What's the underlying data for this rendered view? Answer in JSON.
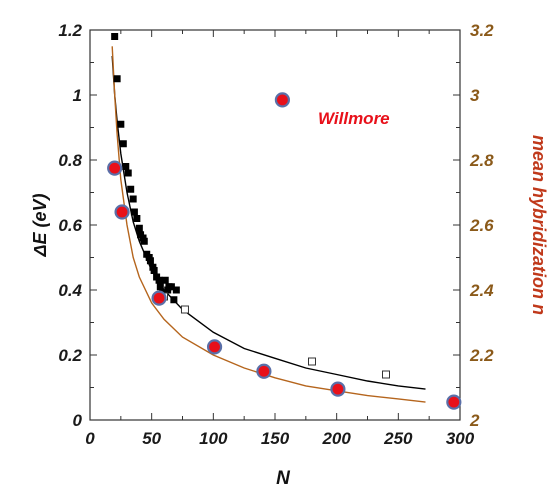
{
  "chart_data": {
    "type": "scatter",
    "xlabel": "N",
    "ylabel": "ΔE (eV)",
    "y2label": "mean hybridization  n",
    "xlim": [
      0,
      300
    ],
    "ylim": [
      0,
      1.2
    ],
    "y2lim": [
      2.0,
      3.2
    ],
    "xticks": [
      "0",
      "50",
      "100",
      "150",
      "200",
      "250",
      "300"
    ],
    "yticks": [
      "0",
      "0.2",
      "0.4",
      "0.6",
      "0.8",
      "1",
      "1.2"
    ],
    "y2ticks": [
      "2",
      "2.2",
      "2.4",
      "2.6",
      "2.8",
      "3",
      "3.2"
    ],
    "grid": false,
    "annotation": "Willmore",
    "colors": {
      "black_series": "#000000",
      "red_series": "#e8101a",
      "red_edge": "#5a6fa8",
      "black_curve": "#000000",
      "brown_curve": "#b5651d",
      "right_axis": "#8b5a1a"
    },
    "series": [
      {
        "marker": "filled-square",
        "x": [
          20,
          22,
          25,
          27,
          29,
          31,
          33,
          35,
          36,
          38,
          40,
          41,
          43,
          44,
          46,
          48,
          49,
          51,
          52,
          54,
          56,
          57,
          59,
          61,
          63,
          64,
          66,
          68,
          70
        ],
        "y": [
          1.18,
          1.05,
          0.91,
          0.85,
          0.78,
          0.76,
          0.71,
          0.68,
          0.64,
          0.62,
          0.59,
          0.57,
          0.56,
          0.55,
          0.51,
          0.5,
          0.49,
          0.47,
          0.46,
          0.44,
          0.43,
          0.41,
          0.39,
          0.43,
          0.4,
          0.41,
          0.41,
          0.37,
          0.4
        ]
      },
      {
        "marker": "open-square",
        "x": [
          60,
          77,
          180,
          240
        ],
        "y": [
          0.38,
          0.34,
          0.18,
          0.14
        ]
      },
      {
        "marker": "red-circle",
        "axis": "right",
        "x": [
          20,
          26,
          56,
          101,
          141,
          201,
          156,
          295
        ],
        "y": [
          2.775,
          2.64,
          2.375,
          2.225,
          2.15,
          2.095,
          2.985,
          2.055
        ]
      }
    ],
    "curves": [
      {
        "axis": "left",
        "x": [
          18,
          20,
          22,
          25,
          30,
          35,
          40,
          50,
          60,
          75,
          100,
          125,
          150,
          175,
          200,
          225,
          250,
          272
        ],
        "y": [
          1.12,
          1.0,
          0.92,
          0.82,
          0.7,
          0.61,
          0.55,
          0.46,
          0.4,
          0.34,
          0.27,
          0.22,
          0.19,
          0.16,
          0.14,
          0.12,
          0.105,
          0.095
        ]
      },
      {
        "axis": "right",
        "x": [
          18,
          20,
          22,
          25,
          30,
          35,
          40,
          50,
          60,
          75,
          100,
          125,
          150,
          175,
          200,
          225,
          250,
          272
        ],
        "y": [
          3.15,
          3.0,
          2.88,
          2.74,
          2.6,
          2.5,
          2.44,
          2.36,
          2.31,
          2.255,
          2.2,
          2.16,
          2.13,
          2.105,
          2.09,
          2.075,
          2.065,
          2.055
        ]
      }
    ]
  }
}
